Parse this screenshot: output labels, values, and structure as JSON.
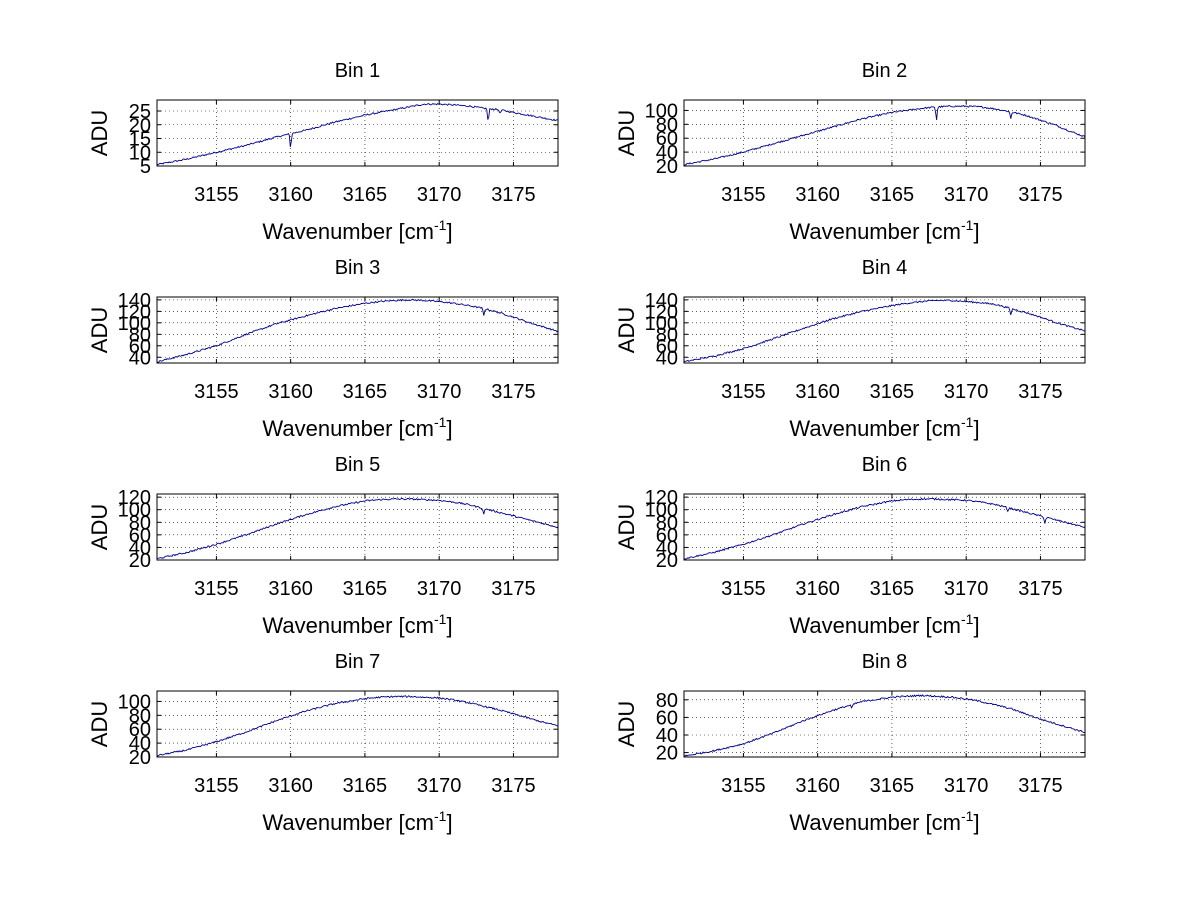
{
  "figure": {
    "background": "#ffffff",
    "line_color": "#00008b"
  },
  "chart_data": [
    {
      "type": "line",
      "title": "Bin 1",
      "xlabel": "Wavenumber [cm",
      "xlabel_sup": "-1",
      "xlabel_suffix": "]",
      "ylabel": "ADU",
      "xlim": [
        3151,
        3178
      ],
      "ylim": [
        5,
        29
      ],
      "xticks": [
        3155,
        3160,
        3165,
        3170,
        3175
      ],
      "yticks": [
        5,
        10,
        15,
        20,
        25
      ],
      "ytick_labels": [
        "5",
        "10",
        "15",
        "20",
        "25"
      ],
      "grid": true,
      "series": [
        {
          "x": [
            3151,
            3153,
            3155,
            3157,
            3159,
            3161,
            3163,
            3165,
            3167,
            3168,
            3169,
            3170,
            3171,
            3172,
            3173,
            3174,
            3175,
            3176,
            3177,
            3178
          ],
          "y": [
            5.5,
            7.5,
            10,
            12.5,
            15.5,
            18,
            21,
            23.5,
            25.5,
            26.5,
            27.5,
            27.5,
            27.2,
            26.8,
            26,
            25.5,
            24.5,
            23.5,
            22.5,
            21.5
          ]
        }
      ],
      "dips": [
        [
          3160,
          11.5
        ],
        [
          3173.3,
          21
        ],
        [
          3174.1,
          24
        ]
      ]
    },
    {
      "type": "line",
      "title": "Bin 2",
      "xlabel": "Wavenumber [cm",
      "xlabel_sup": "-1",
      "xlabel_suffix": "]",
      "ylabel": "ADU",
      "xlim": [
        3151,
        3178
      ],
      "ylim": [
        20,
        115
      ],
      "xticks": [
        3155,
        3160,
        3165,
        3170,
        3175
      ],
      "yticks": [
        20,
        40,
        60,
        80,
        100
      ],
      "ytick_labels": [
        "20",
        "40",
        "60",
        "80",
        "100"
      ],
      "grid": true,
      "series": [
        {
          "x": [
            3151,
            3153,
            3155,
            3157,
            3159,
            3161,
            3163,
            3165,
            3167,
            3168,
            3169,
            3170,
            3171,
            3172,
            3173,
            3174,
            3175,
            3176,
            3177,
            3178
          ],
          "y": [
            22,
            30,
            40,
            52,
            64,
            76,
            88,
            97,
            103,
            105,
            106,
            106,
            105,
            102,
            98,
            93,
            86,
            79,
            70,
            62
          ]
        }
      ],
      "dips": [
        [
          3168,
          86
        ],
        [
          3173,
          88
        ]
      ]
    },
    {
      "type": "line",
      "title": "Bin 3",
      "xlabel": "Wavenumber [cm",
      "xlabel_sup": "-1",
      "xlabel_suffix": "]",
      "ylabel": "ADU",
      "xlim": [
        3151,
        3178
      ],
      "ylim": [
        30,
        145
      ],
      "xticks": [
        3155,
        3160,
        3165,
        3170,
        3175
      ],
      "yticks": [
        40,
        60,
        80,
        100,
        120,
        140
      ],
      "ytick_labels": [
        "40",
        "60",
        "80",
        "100",
        "120",
        "140"
      ],
      "grid": true,
      "series": [
        {
          "x": [
            3151,
            3153,
            3155,
            3157,
            3159,
            3161,
            3163,
            3165,
            3166,
            3167,
            3168,
            3169,
            3170,
            3171,
            3172,
            3173,
            3174,
            3175,
            3176,
            3177,
            3178
          ],
          "y": [
            32,
            45,
            60,
            80,
            98,
            112,
            125,
            134,
            137,
            139,
            140,
            139,
            137,
            134,
            130,
            125,
            118,
            110,
            101,
            93,
            85
          ]
        }
      ],
      "dips": [
        [
          3173,
          112
        ]
      ]
    },
    {
      "type": "line",
      "title": "Bin 4",
      "xlabel": "Wavenumber [cm",
      "xlabel_sup": "-1",
      "xlabel_suffix": "]",
      "ylabel": "ADU",
      "xlim": [
        3151,
        3178
      ],
      "ylim": [
        30,
        145
      ],
      "xticks": [
        3155,
        3160,
        3165,
        3170,
        3175
      ],
      "yticks": [
        40,
        60,
        80,
        100,
        120,
        140
      ],
      "ytick_labels": [
        "40",
        "60",
        "80",
        "100",
        "120",
        "140"
      ],
      "grid": true,
      "series": [
        {
          "x": [
            3151,
            3153,
            3155,
            3157,
            3159,
            3161,
            3163,
            3165,
            3166,
            3167,
            3168,
            3169,
            3170,
            3171,
            3172,
            3173,
            3174,
            3175,
            3176,
            3177,
            3178
          ],
          "y": [
            32,
            42,
            55,
            72,
            90,
            107,
            120,
            130,
            134,
            137,
            139,
            139,
            137,
            135,
            132,
            125,
            118,
            110,
            101,
            93,
            86
          ]
        }
      ],
      "dips": [
        [
          3173,
          113
        ]
      ]
    },
    {
      "type": "line",
      "title": "Bin 5",
      "xlabel": "Wavenumber [cm",
      "xlabel_sup": "-1",
      "xlabel_suffix": "]",
      "ylabel": "ADU",
      "xlim": [
        3151,
        3178
      ],
      "ylim": [
        20,
        125
      ],
      "xticks": [
        3155,
        3160,
        3165,
        3170,
        3175
      ],
      "yticks": [
        20,
        40,
        60,
        80,
        100,
        120
      ],
      "ytick_labels": [
        "20",
        "40",
        "60",
        "80",
        "100",
        "120"
      ],
      "grid": true,
      "series": [
        {
          "x": [
            3151,
            3153,
            3155,
            3157,
            3159,
            3161,
            3163,
            3165,
            3166,
            3167,
            3168,
            3169,
            3170,
            3171,
            3172,
            3173,
            3174,
            3175,
            3176,
            3177,
            3178
          ],
          "y": [
            22,
            32,
            45,
            60,
            77,
            92,
            105,
            114,
            116,
            117,
            117,
            116,
            115,
            112,
            108,
            102,
            96,
            90,
            84,
            78,
            72
          ]
        }
      ],
      "dips": [
        [
          3173,
          92
        ]
      ]
    },
    {
      "type": "line",
      "title": "Bin 6",
      "xlabel": "Wavenumber [cm",
      "xlabel_sup": "-1",
      "xlabel_suffix": "]",
      "ylabel": "ADU",
      "xlim": [
        3151,
        3178
      ],
      "ylim": [
        20,
        125
      ],
      "xticks": [
        3155,
        3160,
        3165,
        3170,
        3175
      ],
      "yticks": [
        20,
        40,
        60,
        80,
        100,
        120
      ],
      "ytick_labels": [
        "20",
        "40",
        "60",
        "80",
        "100",
        "120"
      ],
      "grid": true,
      "series": [
        {
          "x": [
            3151,
            3153,
            3155,
            3157,
            3159,
            3161,
            3163,
            3165,
            3166,
            3167,
            3168,
            3169,
            3170,
            3171,
            3172,
            3173,
            3174,
            3175,
            3176,
            3177,
            3178
          ],
          "y": [
            22,
            32,
            45,
            60,
            77,
            92,
            105,
            114,
            116,
            117,
            117,
            116,
            115,
            112,
            108,
            102,
            96,
            90,
            84,
            78,
            72
          ]
        }
      ],
      "dips": [
        [
          3172.8,
          98
        ],
        [
          3175.3,
          78
        ]
      ]
    },
    {
      "type": "line",
      "title": "Bin 7",
      "xlabel": "Wavenumber [cm",
      "xlabel_sup": "-1",
      "xlabel_suffix": "]",
      "ylabel": "ADU",
      "xlim": [
        3151,
        3178
      ],
      "ylim": [
        20,
        115
      ],
      "xticks": [
        3155,
        3160,
        3165,
        3170,
        3175
      ],
      "yticks": [
        20,
        40,
        60,
        80,
        100
      ],
      "ytick_labels": [
        "20",
        "40",
        "60",
        "80",
        "100"
      ],
      "grid": true,
      "series": [
        {
          "x": [
            3151,
            3153,
            3155,
            3157,
            3159,
            3161,
            3163,
            3165,
            3166,
            3167,
            3168,
            3169,
            3170,
            3171,
            3172,
            3173,
            3174,
            3175,
            3176,
            3177,
            3178
          ],
          "y": [
            22,
            30,
            42,
            56,
            72,
            86,
            97,
            104,
            106,
            107,
            107,
            106,
            105,
            102,
            98,
            93,
            88,
            82,
            76,
            70,
            65
          ]
        }
      ],
      "dips": []
    },
    {
      "type": "line",
      "title": "Bin 8",
      "xlabel": "Wavenumber [cm",
      "xlabel_sup": "-1",
      "xlabel_suffix": "]",
      "ylabel": "ADU",
      "xlim": [
        3151,
        3178
      ],
      "ylim": [
        15,
        90
      ],
      "xticks": [
        3155,
        3160,
        3165,
        3170,
        3175
      ],
      "yticks": [
        20,
        40,
        60,
        80
      ],
      "ytick_labels": [
        "20",
        "40",
        "60",
        "80"
      ],
      "grid": true,
      "series": [
        {
          "x": [
            3151,
            3153,
            3155,
            3157,
            3159,
            3161,
            3163,
            3165,
            3166,
            3167,
            3168,
            3169,
            3170,
            3171,
            3172,
            3173,
            3174,
            3175,
            3176,
            3177,
            3178
          ],
          "y": [
            16,
            22,
            30,
            42,
            56,
            68,
            78,
            83,
            84,
            85,
            84,
            83,
            81,
            78,
            74,
            70,
            64,
            58,
            53,
            48,
            43
          ]
        }
      ],
      "dips": [
        [
          3162.3,
          70
        ]
      ]
    }
  ]
}
